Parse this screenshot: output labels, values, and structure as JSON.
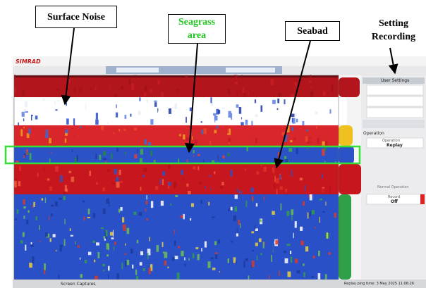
{
  "annotations": [
    {
      "text": "Surface Noise"
    },
    {
      "text": "Seagrass area"
    },
    {
      "text": "Seabad"
    },
    {
      "text": "Setting Recording"
    }
  ],
  "toolbar": {
    "brand": "SIMRAD"
  },
  "side_panel": {
    "user_settings": "User Settings",
    "section": "Operation",
    "operation_label": "Operation",
    "operation_value": "Replay",
    "mode": "Normal Operation",
    "record_label": "Record",
    "record_value": "Off"
  },
  "status_bar": {
    "tab": "Screen Captures",
    "replay_time": "Replay ping time: 3 May 2025 11:06:26"
  }
}
